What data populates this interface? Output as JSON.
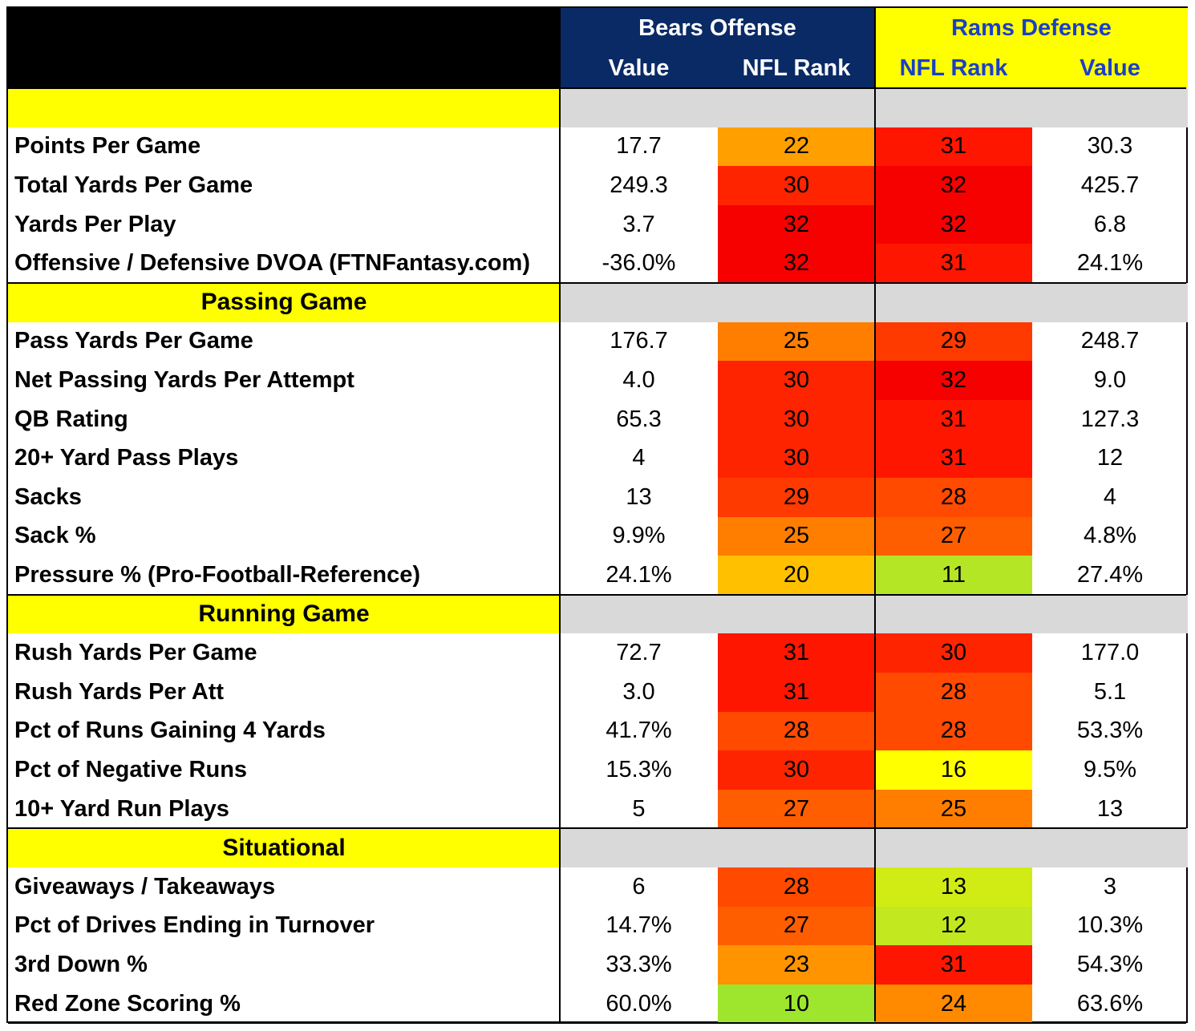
{
  "header": {
    "bears_title": "Bears Offense",
    "rams_title": "Rams Defense",
    "bears_value_label": "Value",
    "bears_rank_label": "NFL Rank",
    "rams_rank_label": "NFL Rank",
    "rams_value_label": "Value"
  },
  "colors": {
    "navy": "#0a2a66",
    "yellow": "#ffff00",
    "blue_text": "#1a3fc8",
    "gray": "#d9d9d9"
  },
  "sections": [
    {
      "title": "",
      "rows": [
        {
          "label": "Points Per Game",
          "bears_value": "17.7",
          "bears_rank": "22",
          "rams_rank": "31",
          "rams_value": "30.3"
        },
        {
          "label": "Total Yards Per Game",
          "bears_value": "249.3",
          "bears_rank": "30",
          "rams_rank": "32",
          "rams_value": "425.7"
        },
        {
          "label": "Yards Per Play",
          "bears_value": "3.7",
          "bears_rank": "32",
          "rams_rank": "32",
          "rams_value": "6.8"
        },
        {
          "label": "Offensive / Defensive DVOA (FTNFantasy.com)",
          "bears_value": "-36.0%",
          "bears_rank": "32",
          "rams_rank": "31",
          "rams_value": "24.1%"
        }
      ]
    },
    {
      "title": "Passing Game",
      "rows": [
        {
          "label": "Pass Yards Per Game",
          "bears_value": "176.7",
          "bears_rank": "25",
          "rams_rank": "29",
          "rams_value": "248.7"
        },
        {
          "label": "Net Passing Yards Per Attempt",
          "bears_value": "4.0",
          "bears_rank": "30",
          "rams_rank": "32",
          "rams_value": "9.0"
        },
        {
          "label": "QB Rating",
          "bears_value": "65.3",
          "bears_rank": "30",
          "rams_rank": "31",
          "rams_value": "127.3"
        },
        {
          "label": "20+ Yard Pass Plays",
          "bears_value": "4",
          "bears_rank": "30",
          "rams_rank": "31",
          "rams_value": "12"
        },
        {
          "label": "Sacks",
          "bears_value": "13",
          "bears_rank": "29",
          "rams_rank": "28",
          "rams_value": "4"
        },
        {
          "label": "Sack %",
          "bears_value": "9.9%",
          "bears_rank": "25",
          "rams_rank": "27",
          "rams_value": "4.8%"
        },
        {
          "label": "Pressure % (Pro-Football-Reference)",
          "bears_value": "24.1%",
          "bears_rank": "20",
          "rams_rank": "11",
          "rams_value": "27.4%"
        }
      ]
    },
    {
      "title": "Running Game",
      "rows": [
        {
          "label": "Rush Yards Per Game",
          "bears_value": "72.7",
          "bears_rank": "31",
          "rams_rank": "30",
          "rams_value": "177.0"
        },
        {
          "label": "Rush Yards Per Att",
          "bears_value": "3.0",
          "bears_rank": "31",
          "rams_rank": "28",
          "rams_value": "5.1"
        },
        {
          "label": "Pct of Runs Gaining 4 Yards",
          "bears_value": "41.7%",
          "bears_rank": "28",
          "rams_rank": "28",
          "rams_value": "53.3%"
        },
        {
          "label": "Pct of Negative Runs",
          "bears_value": "15.3%",
          "bears_rank": "30",
          "rams_rank": "16",
          "rams_value": "9.5%"
        },
        {
          "label": "10+ Yard Run Plays",
          "bears_value": "5",
          "bears_rank": "27",
          "rams_rank": "25",
          "rams_value": "13"
        }
      ]
    },
    {
      "title": "Situational",
      "rows": [
        {
          "label": "Giveaways / Takeaways",
          "bears_value": "6",
          "bears_rank": "28",
          "rams_rank": "13",
          "rams_value": "3"
        },
        {
          "label": "Pct of Drives Ending in Turnover",
          "bears_value": "14.7%",
          "bears_rank": "27",
          "rams_rank": "12",
          "rams_value": "10.3%"
        },
        {
          "label": "3rd Down %",
          "bears_value": "33.3%",
          "bears_rank": "23",
          "rams_rank": "31",
          "rams_value": "54.3%"
        },
        {
          "label": "Red Zone Scoring %",
          "bears_value": "60.0%",
          "bears_rank": "10",
          "rams_rank": "24",
          "rams_value": "63.6%"
        }
      ]
    }
  ]
}
